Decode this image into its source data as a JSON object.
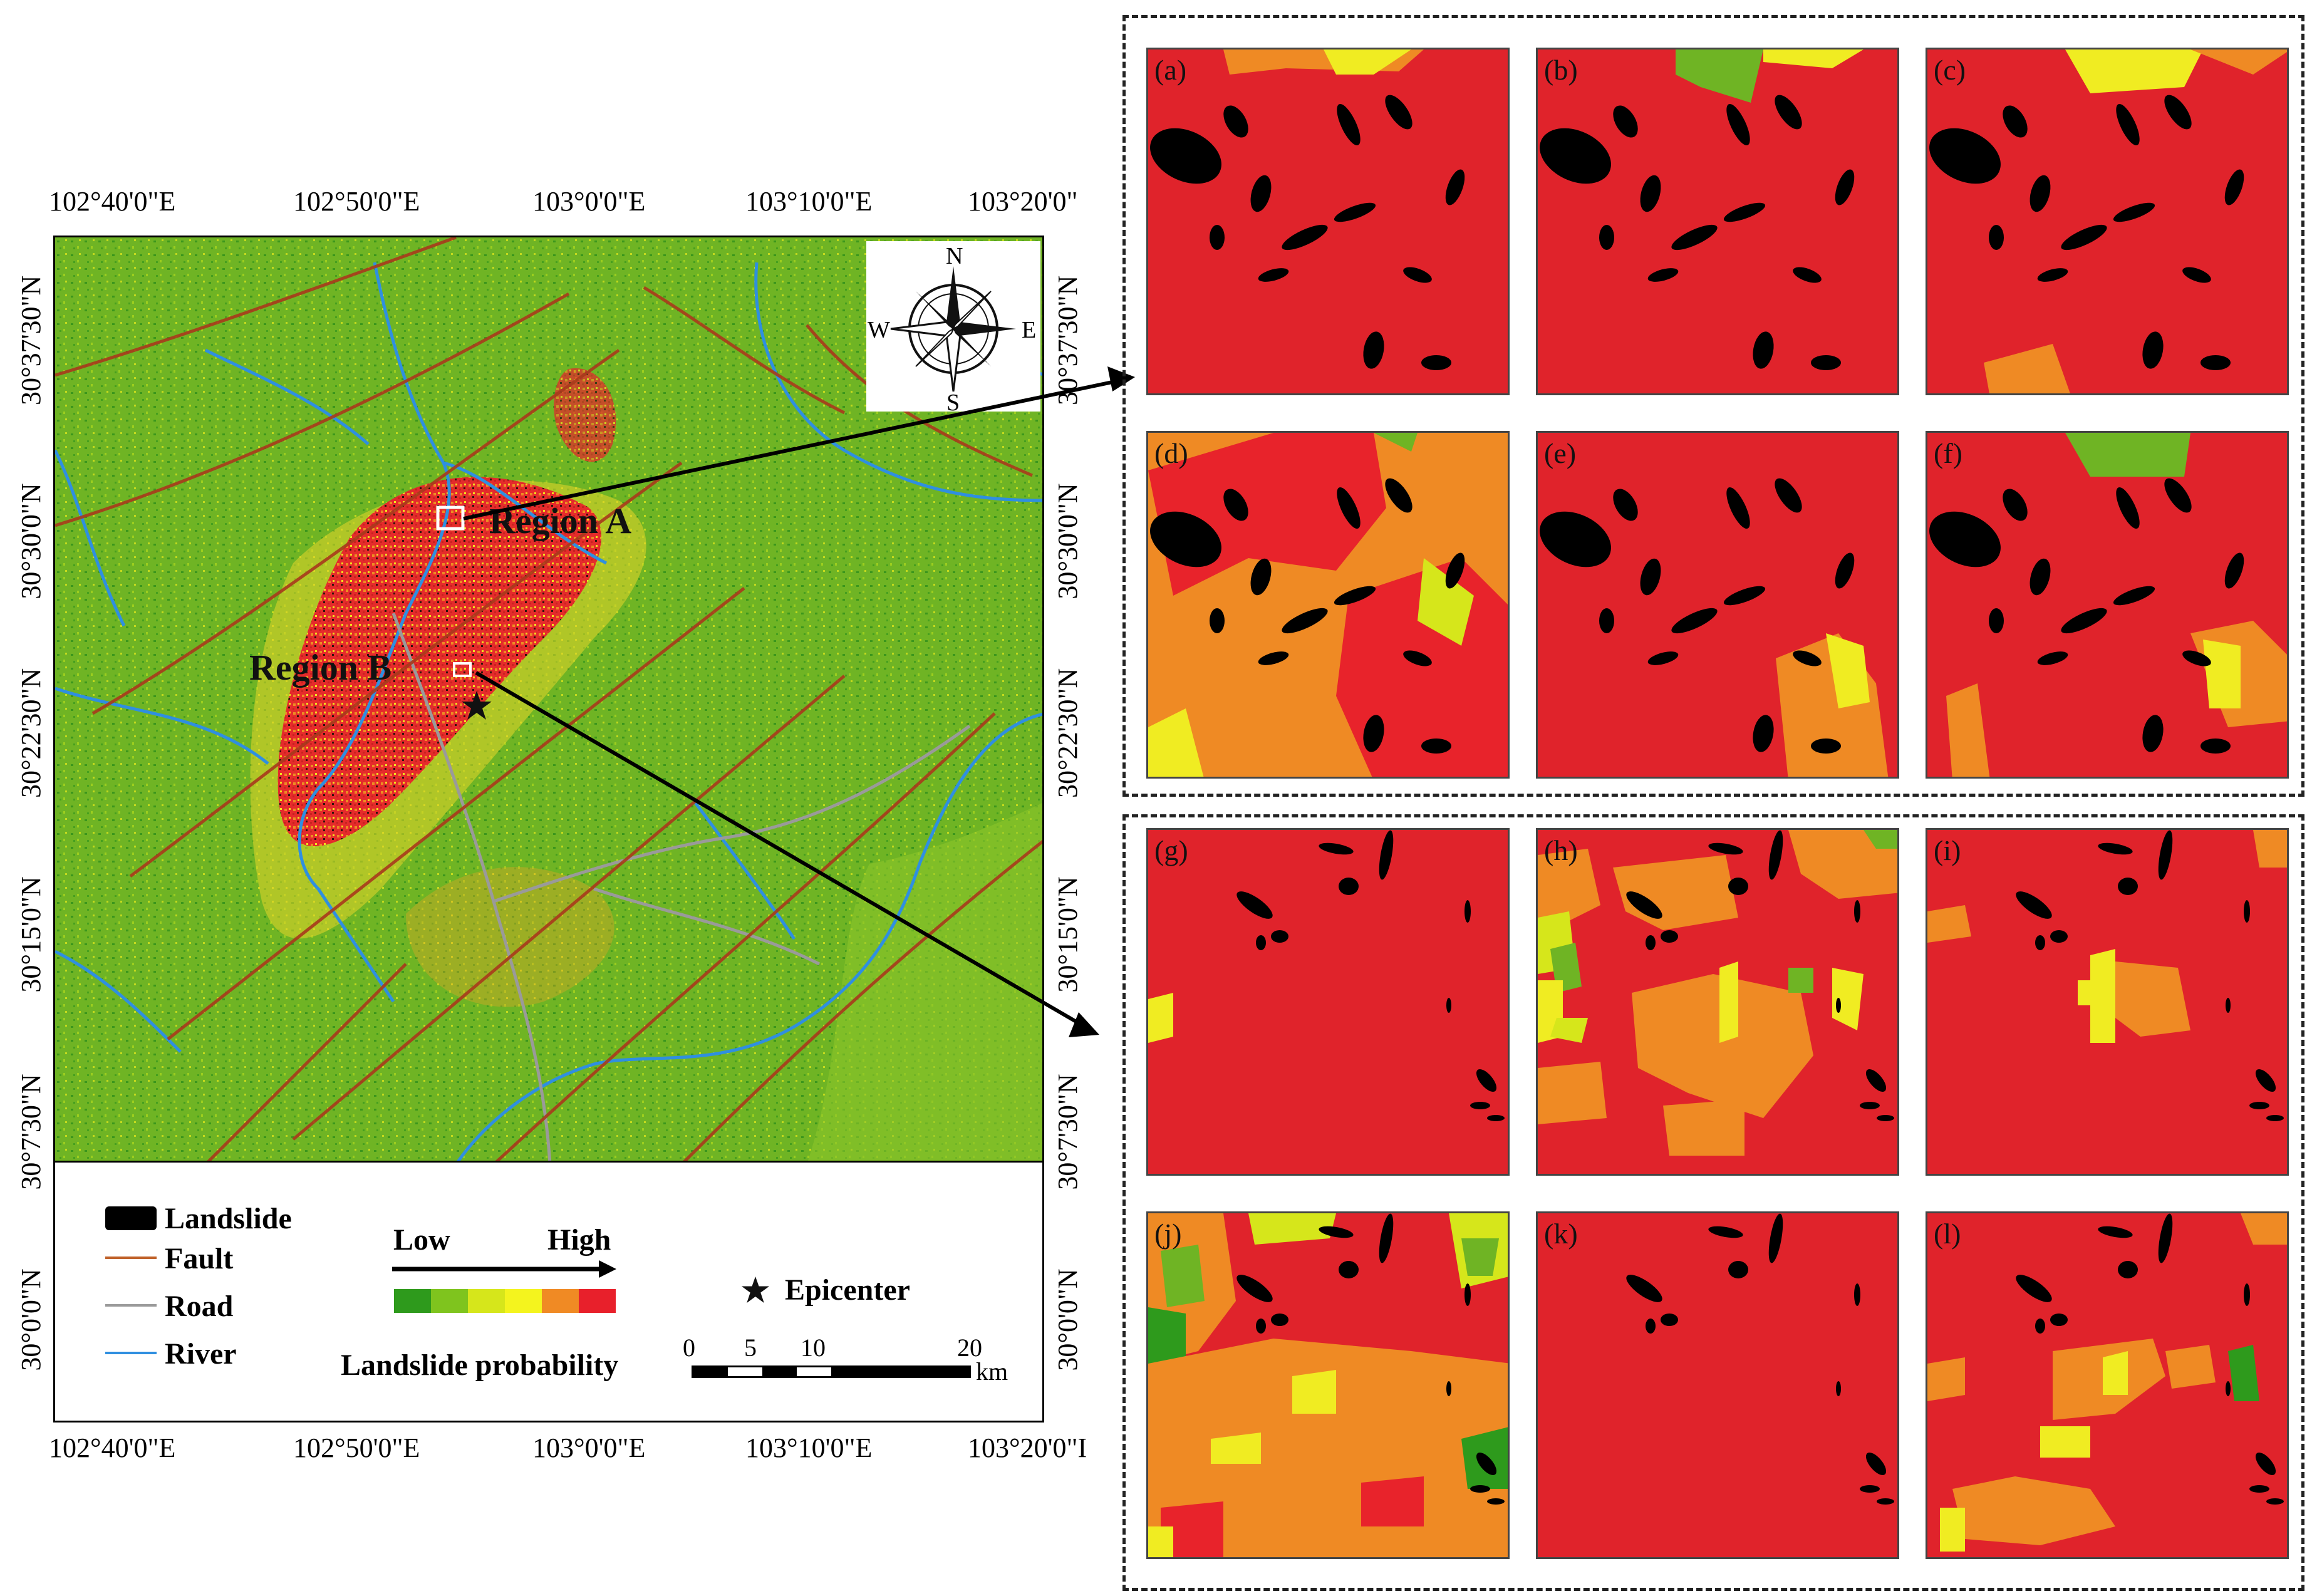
{
  "map": {
    "top_longitudes": [
      "102°40'0\"E",
      "102°50'0\"E",
      "103°0'0\"E",
      "103°10'0\"E",
      "103°20'0\""
    ],
    "bottom_longitudes": [
      "102°40'0\"E",
      "102°50'0\"E",
      "103°0'0\"E",
      "103°10'0\"E",
      "103°20'0\"I"
    ],
    "left_latitudes": [
      "30°37'30\"N",
      "30°30'0\"N",
      "30°22'30\"N",
      "30°15'0\"N",
      "30°7'30\"N",
      "30°0'0\"N"
    ],
    "right_latitudes": [
      "30°37'30\"N",
      "30°30'0\"N",
      "30°22'30\"N",
      "30°15'0\"N",
      "30°7'30\"N",
      "30°0'0\"N"
    ],
    "compass": {
      "n": "N",
      "s": "S",
      "e": "E",
      "w": "W"
    },
    "region_a": "Region A",
    "region_b": "Region B",
    "epicenter_icon": "star-icon"
  },
  "legend": {
    "landslide": "Landslide",
    "fault": "Fault",
    "road": "Road",
    "river": "River",
    "low": "Low",
    "high": "High",
    "probability": "Landslide probability",
    "epicenter": "Epicenter",
    "scale_ticks": [
      "0",
      "5",
      "10",
      "20"
    ],
    "scale_unit": "km",
    "colors": {
      "fault": "#c0622a",
      "road": "#9a9a9a",
      "river": "#2f8fe0",
      "landslide": "#000000",
      "ramp": [
        "#2e9a1c",
        "#7fc41e",
        "#d6e61b",
        "#f4f41e",
        "#f08a24",
        "#e8202b"
      ]
    }
  },
  "panels": [
    "(a)",
    "(b)",
    "(c)",
    "(d)",
    "(e)",
    "(f)",
    "(g)",
    "(h)",
    "(i)",
    "(j)",
    "(k)",
    "(l)"
  ]
}
